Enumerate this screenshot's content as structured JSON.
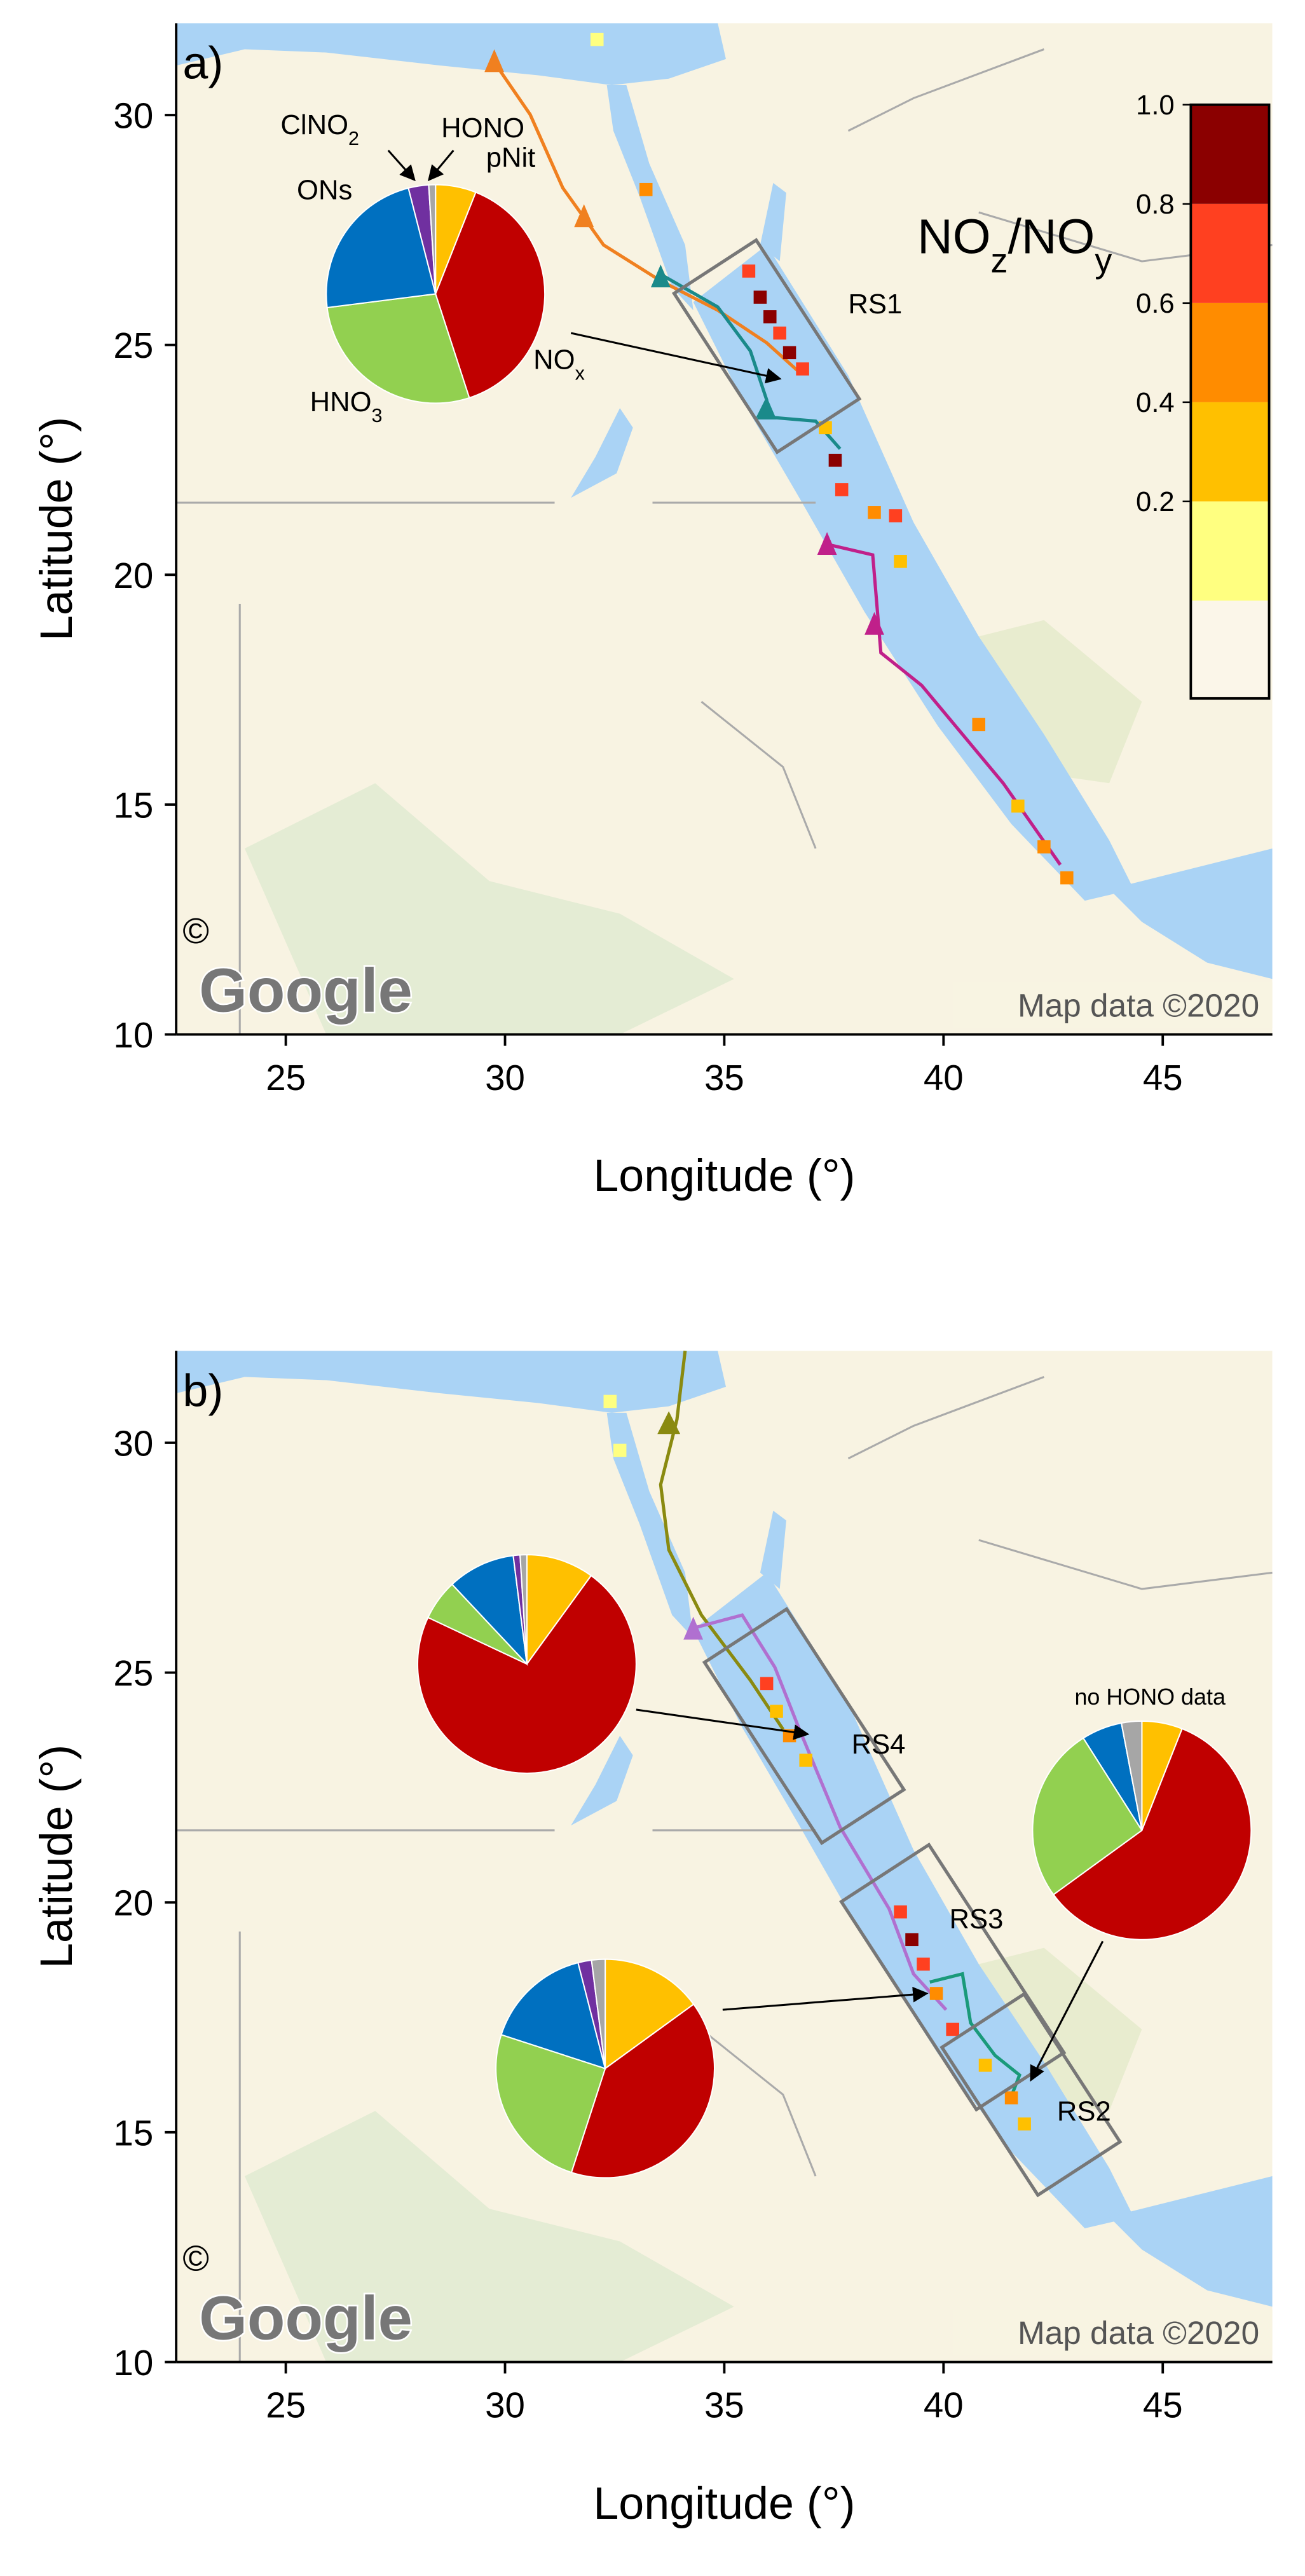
{
  "chart_data": [
    {
      "type": "map",
      "title": "a)",
      "xlabel": "Longitude (°)",
      "ylabel": "Latitude (°)",
      "xlim": [
        22.5,
        47.5
      ],
      "ylim": [
        10,
        32
      ],
      "xticks": [
        25,
        30,
        35,
        40,
        45
      ],
      "yticks": [
        10,
        15,
        20,
        25,
        30
      ],
      "credit": "Map data ©2020",
      "logo": "Google",
      "copyright": "©",
      "slice_colors": [
        "#ffc000",
        "#c00000",
        "#92d050",
        "#0070c0",
        "#7030a0",
        "#a6a6a6"
      ],
      "regions": [
        "RS1"
      ],
      "pies": [
        {
          "values": [
            6,
            39,
            28,
            23,
            3,
            1
          ],
          "slice_labels": [
            [
              "pNit"
            ],
            [
              "NO",
              "x"
            ],
            [
              "HNO",
              "3"
            ],
            [
              "ONs"
            ],
            [
              "ClNO",
              "2"
            ],
            [
              "HONO"
            ]
          ]
        }
      ],
      "colorbar": {
        "label": [
          "NO",
          "z",
          "/NO",
          "y"
        ],
        "clim": [
          0,
          1
        ],
        "ticks": [
          {
            "value": 1,
            "label": "1.0"
          },
          0.8,
          0.6,
          0.4,
          0.2
        ],
        "colors": [
          "#ffff80",
          "#ffc000",
          "#ff8c00",
          "#ff4020",
          "#8b0000"
        ],
        "under_color": "#fbf6e9"
      }
    },
    {
      "type": "map",
      "title": "b)",
      "xlabel": "Longitude (°)",
      "ylabel": "Latitude (°)",
      "xlim": [
        22.5,
        47.5
      ],
      "ylim": [
        10,
        32
      ],
      "xticks": [
        25,
        30,
        35,
        40,
        45
      ],
      "yticks": [
        10,
        15,
        20,
        25,
        30
      ],
      "credit": "Map data ©2020",
      "logo": "Google",
      "copyright": "©",
      "slice_colors": [
        "#ffc000",
        "#c00000",
        "#92d050",
        "#0070c0",
        "#7030a0",
        "#a6a6a6"
      ],
      "regions": [
        "RS4",
        "RS3",
        "RS2"
      ],
      "pies": [
        {
          "values": [
            10,
            72,
            6,
            10,
            1,
            1
          ]
        },
        {
          "values": [
            15,
            40,
            25,
            16,
            2,
            2
          ]
        },
        {
          "values": [
            6,
            59,
            26,
            6,
            0,
            3
          ],
          "note": "no HONO data"
        }
      ]
    }
  ]
}
